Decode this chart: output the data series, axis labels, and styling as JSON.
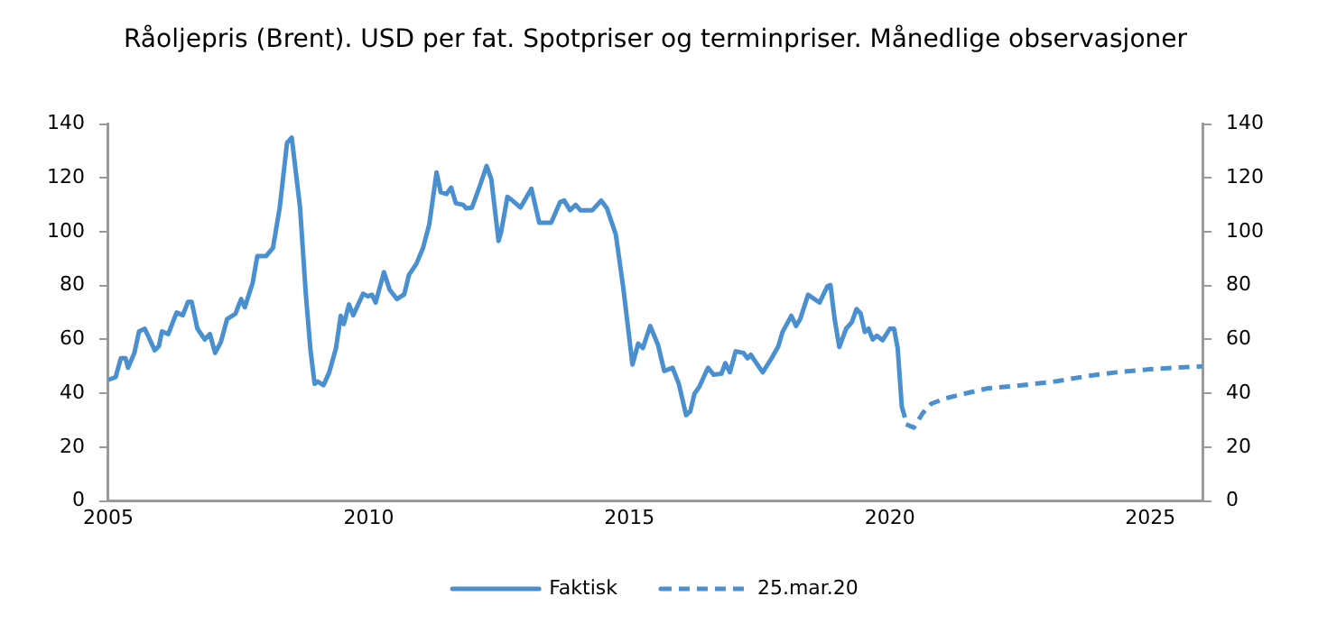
{
  "chart_data": {
    "type": "line",
    "title": "Råoljepris (Brent). USD per fat. Spotpriser og terminpriser. Månedlige observasjoner",
    "xlim": [
      2005,
      2026
    ],
    "xticks": [
      2005,
      2010,
      2015,
      2020,
      2025
    ],
    "ylim": [
      0,
      140
    ],
    "yticks": [
      0,
      20,
      40,
      60,
      80,
      100,
      120,
      140
    ],
    "y2lim": [
      0,
      140
    ],
    "y2ticks": [
      0,
      20,
      40,
      60,
      80,
      100,
      120,
      140
    ],
    "grid": false,
    "legend": "bottom",
    "marker": "none",
    "series": [
      {
        "name": "Faktisk",
        "color": "#4a90d0",
        "line_style": "solid",
        "x": [
          2005.0,
          2005.14,
          2005.24,
          2005.33,
          2005.38,
          2005.5,
          2005.59,
          2005.7,
          2005.89,
          2005.97,
          2006.03,
          2006.15,
          2006.31,
          2006.43,
          2006.53,
          2006.6,
          2006.71,
          2006.85,
          2006.95,
          2007.05,
          2007.16,
          2007.28,
          2007.44,
          2007.55,
          2007.62,
          2007.77,
          2007.86,
          2008.03,
          2008.16,
          2008.29,
          2008.43,
          2008.52,
          2008.68,
          2008.79,
          2008.88,
          2008.96,
          2009.02,
          2009.13,
          2009.24,
          2009.37,
          2009.46,
          2009.52,
          2009.62,
          2009.7,
          2009.89,
          2009.98,
          2010.06,
          2010.13,
          2010.29,
          2010.4,
          2010.54,
          2010.68,
          2010.77,
          2010.91,
          2011.04,
          2011.16,
          2011.3,
          2011.38,
          2011.49,
          2011.58,
          2011.67,
          2011.81,
          2011.87,
          2011.98,
          2012.13,
          2012.26,
          2012.35,
          2012.49,
          2012.54,
          2012.66,
          2012.73,
          2012.91,
          2013.12,
          2013.27,
          2013.5,
          2013.67,
          2013.75,
          2013.86,
          2013.97,
          2014.06,
          2014.29,
          2014.46,
          2014.57,
          2014.74,
          2014.88,
          2015.06,
          2015.17,
          2015.26,
          2015.4,
          2015.55,
          2015.67,
          2015.83,
          2015.95,
          2016.09,
          2016.17,
          2016.25,
          2016.34,
          2016.51,
          2016.62,
          2016.77,
          2016.84,
          2016.93,
          2017.04,
          2017.19,
          2017.27,
          2017.33,
          2017.56,
          2017.72,
          2017.86,
          2017.94,
          2018.11,
          2018.2,
          2018.28,
          2018.43,
          2018.65,
          2018.8,
          2018.86,
          2018.94,
          2019.03,
          2019.16,
          2019.27,
          2019.36,
          2019.44,
          2019.52,
          2019.59,
          2019.67,
          2019.75,
          2019.86,
          2020.0,
          2020.08,
          2020.15,
          2020.23,
          2020.29
        ],
        "values": [
          45,
          46,
          53,
          53,
          49.5,
          55,
          63,
          64,
          56,
          57.5,
          63,
          62,
          70,
          69,
          74,
          74,
          64,
          60,
          62,
          55,
          59,
          67.6,
          69.6,
          75,
          72,
          81,
          91,
          91,
          94,
          109,
          133,
          135,
          109,
          77,
          56,
          43.5,
          44.4,
          43,
          47.8,
          56.8,
          68.8,
          65.7,
          73,
          69,
          77,
          76,
          76.6,
          73.7,
          85,
          78.5,
          75,
          76.8,
          84,
          88,
          94,
          102.7,
          122,
          114.7,
          114,
          116.4,
          110.6,
          110,
          108.7,
          109,
          117,
          124.4,
          119.6,
          96.6,
          100,
          113,
          112,
          109,
          116,
          103.4,
          103.4,
          111,
          111.6,
          108,
          110,
          108,
          108,
          111.6,
          108.7,
          99,
          79.7,
          50.7,
          58.5,
          56.8,
          65,
          58,
          48.3,
          49.5,
          43.5,
          31.9,
          33.3,
          39.9,
          42.3,
          49.5,
          46.9,
          47.3,
          51.2,
          47.8,
          55.6,
          55,
          53,
          54.3,
          47.8,
          52.7,
          57.5,
          62.8,
          68.8,
          65,
          67.6,
          76.6,
          73.7,
          79.7,
          80.2,
          67.6,
          57.2,
          64,
          66.4,
          71.3,
          69.6,
          62.8,
          64,
          60,
          61.4,
          59.7,
          64,
          64,
          56.8,
          35,
          31
        ]
      },
      {
        "name": "25.mar.20",
        "color": "#4a90d0",
        "line_style": "dashed",
        "x": [
          2020.31,
          2020.46,
          2020.63,
          2020.8,
          2021.08,
          2021.53,
          2021.87,
          2022.43,
          2023.11,
          2023.79,
          2024.35,
          2024.91,
          2025.47,
          2026
        ],
        "values": [
          28.5,
          27.3,
          32.6,
          36.2,
          38.2,
          40.3,
          41.8,
          42.8,
          44.2,
          46.4,
          47.8,
          48.8,
          49.5,
          50
        ]
      }
    ]
  }
}
